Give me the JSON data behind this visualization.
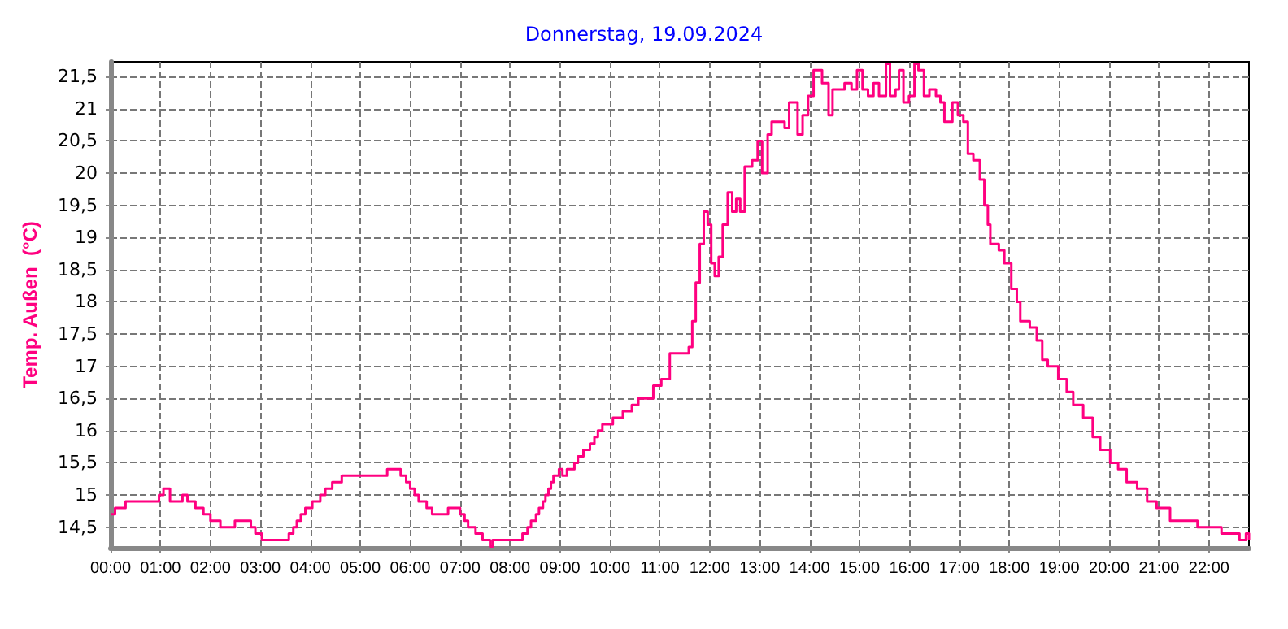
{
  "chart_data": {
    "type": "step",
    "title": "Donnerstag, 19.09.2024",
    "ylabel": "Temp. Außen  (°C)",
    "x": [
      0,
      0.09,
      0.3,
      0.97,
      1.06,
      1.19,
      1.44,
      1.54,
      1.7,
      1.86,
      2.0,
      2.2,
      2.49,
      2.81,
      2.9,
      3.03,
      3.57,
      3.66,
      3.73,
      3.81,
      3.9,
      4.04,
      4.2,
      4.3,
      4.44,
      4.63,
      5.54,
      5.81,
      5.92,
      6.0,
      6.09,
      6.17,
      6.33,
      6.44,
      6.76,
      7.0,
      7.09,
      7.16,
      7.31,
      7.45,
      7.6,
      7.65,
      8.25,
      8.35,
      8.42,
      8.52,
      8.58,
      8.66,
      8.71,
      8.77,
      8.82,
      8.87,
      8.98,
      9.05,
      9.14,
      9.29,
      9.36,
      9.47,
      9.6,
      9.69,
      9.76,
      9.85,
      10.06,
      10.26,
      10.44,
      10.57,
      10.87,
      11.03,
      11.2,
      11.58,
      11.65,
      11.72,
      11.8,
      11.88,
      11.96,
      12.03,
      12.1,
      12.18,
      12.26,
      12.36,
      12.45,
      12.53,
      12.61,
      12.7,
      12.85,
      12.96,
      13.05,
      13.16,
      13.24,
      13.5,
      13.59,
      13.76,
      13.86,
      13.97,
      14.08,
      14.25,
      14.38,
      14.46,
      14.57,
      14.7,
      14.84,
      14.95,
      15.06,
      15.17,
      15.28,
      15.39,
      15.53,
      15.61,
      15.72,
      15.79,
      15.88,
      15.99,
      16.1,
      16.18,
      16.29,
      16.4,
      16.53,
      16.62,
      16.7,
      16.86,
      16.97,
      17.08,
      17.17,
      17.28,
      17.41,
      17.5,
      17.57,
      17.62,
      17.79,
      17.9,
      18.04,
      18.15,
      18.22,
      18.41,
      18.55,
      18.66,
      18.77,
      18.98,
      19.15,
      19.28,
      19.48,
      19.67,
      19.82,
      20.02,
      20.18,
      20.35,
      20.56,
      20.76,
      20.95,
      21.22,
      21.77,
      22.25,
      22.61,
      22.74,
      22.8
    ],
    "series": [
      {
        "color": "#ff0080",
        "values": [
          14.7,
          14.8,
          14.9,
          15.0,
          15.1,
          14.9,
          15.0,
          14.9,
          14.8,
          14.7,
          14.6,
          14.5,
          14.6,
          14.5,
          14.4,
          14.3,
          14.4,
          14.5,
          14.6,
          14.7,
          14.8,
          14.9,
          15.0,
          15.1,
          15.2,
          15.3,
          15.4,
          15.3,
          15.2,
          15.1,
          15.0,
          14.9,
          14.8,
          14.7,
          14.8,
          14.7,
          14.6,
          14.5,
          14.4,
          14.3,
          14.2,
          14.3,
          14.4,
          14.5,
          14.6,
          14.7,
          14.8,
          14.9,
          15.0,
          15.1,
          15.2,
          15.3,
          15.4,
          15.3,
          15.4,
          15.5,
          15.6,
          15.7,
          15.8,
          15.9,
          16.0,
          16.1,
          16.2,
          16.3,
          16.4,
          16.5,
          16.7,
          16.8,
          17.2,
          17.3,
          17.7,
          18.3,
          18.9,
          19.4,
          19.2,
          18.6,
          18.4,
          18.7,
          19.2,
          19.7,
          19.4,
          19.6,
          19.4,
          20.1,
          20.2,
          20.5,
          20.0,
          20.6,
          20.8,
          20.7,
          21.1,
          20.6,
          20.9,
          21.2,
          21.6,
          21.4,
          20.9,
          21.3,
          21.3,
          21.4,
          21.3,
          21.6,
          21.3,
          21.2,
          21.4,
          21.2,
          21.7,
          21.2,
          21.3,
          21.6,
          21.1,
          21.2,
          21.7,
          21.6,
          21.2,
          21.3,
          21.2,
          21.1,
          20.8,
          21.1,
          20.9,
          20.8,
          20.3,
          20.2,
          19.9,
          19.5,
          19.2,
          18.9,
          18.8,
          18.6,
          18.2,
          18.0,
          17.7,
          17.6,
          17.4,
          17.1,
          17.0,
          16.8,
          16.6,
          16.4,
          16.2,
          15.9,
          15.7,
          15.5,
          15.4,
          15.2,
          15.1,
          14.9,
          14.8,
          14.6,
          14.5,
          14.4,
          14.3,
          14.4,
          14.3
        ]
      }
    ],
    "xlim": [
      0,
      22.8
    ],
    "xticks": [
      {
        "value": 0,
        "label": "00:00"
      },
      {
        "value": 1,
        "label": "01:00"
      },
      {
        "value": 2,
        "label": "02:00"
      },
      {
        "value": 3,
        "label": "03:00"
      },
      {
        "value": 4,
        "label": "04:00"
      },
      {
        "value": 5,
        "label": "05:00"
      },
      {
        "value": 6,
        "label": "06:00"
      },
      {
        "value": 7,
        "label": "07:00"
      },
      {
        "value": 8,
        "label": "08:00"
      },
      {
        "value": 9,
        "label": "09:00"
      },
      {
        "value": 10,
        "label": "10:00"
      },
      {
        "value": 11,
        "label": "11:00"
      },
      {
        "value": 12,
        "label": "12:00"
      },
      {
        "value": 13,
        "label": "13:00"
      },
      {
        "value": 14,
        "label": "14:00"
      },
      {
        "value": 15,
        "label": "15:00"
      },
      {
        "value": 16,
        "label": "16:00"
      },
      {
        "value": 17,
        "label": "17:00"
      },
      {
        "value": 18,
        "label": "18:00"
      },
      {
        "value": 19,
        "label": "19:00"
      },
      {
        "value": 20,
        "label": "20:00"
      },
      {
        "value": 21,
        "label": "21:00"
      },
      {
        "value": 22,
        "label": "22:00"
      }
    ],
    "ylim": [
      14.18,
      21.73
    ],
    "yticks": [
      {
        "value": 14.5,
        "label": "14,5"
      },
      15,
      {
        "value": 15.5,
        "label": "15,5"
      },
      16,
      {
        "value": 16.5,
        "label": "16,5"
      },
      17,
      {
        "value": 17.5,
        "label": "17,5"
      },
      18,
      {
        "value": 18.5,
        "label": "18,5"
      },
      19,
      {
        "value": 19.5,
        "label": "19,5"
      },
      20,
      {
        "value": 20.5,
        "label": "20,5"
      },
      21,
      {
        "value": 21.5,
        "label": "21,5"
      }
    ],
    "grid": true,
    "marker": "none",
    "line_style": "solid"
  }
}
